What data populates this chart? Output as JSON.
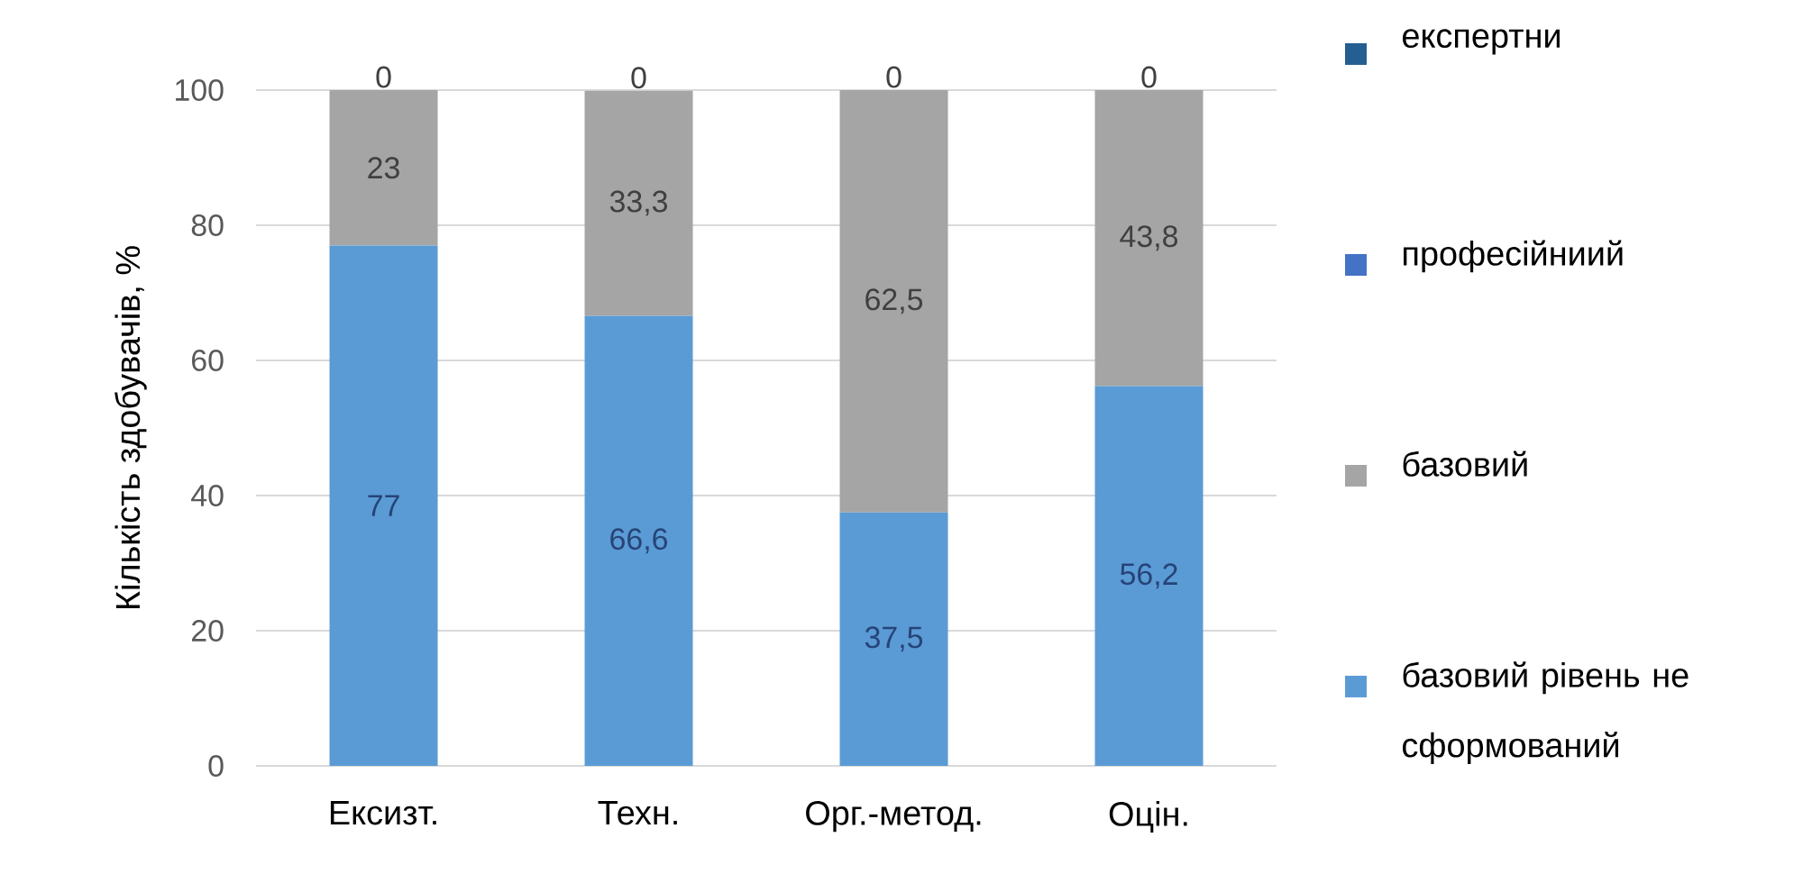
{
  "chart_data": {
    "type": "bar",
    "stacked": true,
    "ylabel": "Кількість здобувачів, %",
    "categories": [
      "Ексизт.",
      "Техн.",
      "Орг.-метод.",
      "Оцін."
    ],
    "series": [
      {
        "name": "базовий рівень не сформований",
        "color": "#5b9bd5",
        "values": [
          77,
          66.6,
          37.5,
          56.2
        ],
        "value_labels": [
          "77",
          "66,6",
          "37,5",
          "56,2"
        ]
      },
      {
        "name": "базовий",
        "color": "#a5a5a5",
        "values": [
          23,
          33.3,
          62.5,
          43.8
        ],
        "value_labels": [
          "23",
          "33,3",
          "62,5",
          "43,8"
        ]
      },
      {
        "name": "професійниий",
        "color": "#4472c4",
        "values": [
          0,
          0,
          0,
          0
        ],
        "value_labels": [
          "0",
          "0",
          "0",
          "0"
        ]
      },
      {
        "name": "експертни",
        "color": "#255e91",
        "values": [
          0,
          0,
          0,
          0
        ]
      }
    ],
    "ylim": [
      0,
      100
    ],
    "yticks": [
      0,
      20,
      40,
      60,
      80,
      100
    ],
    "grid": "y",
    "legend": "right"
  }
}
